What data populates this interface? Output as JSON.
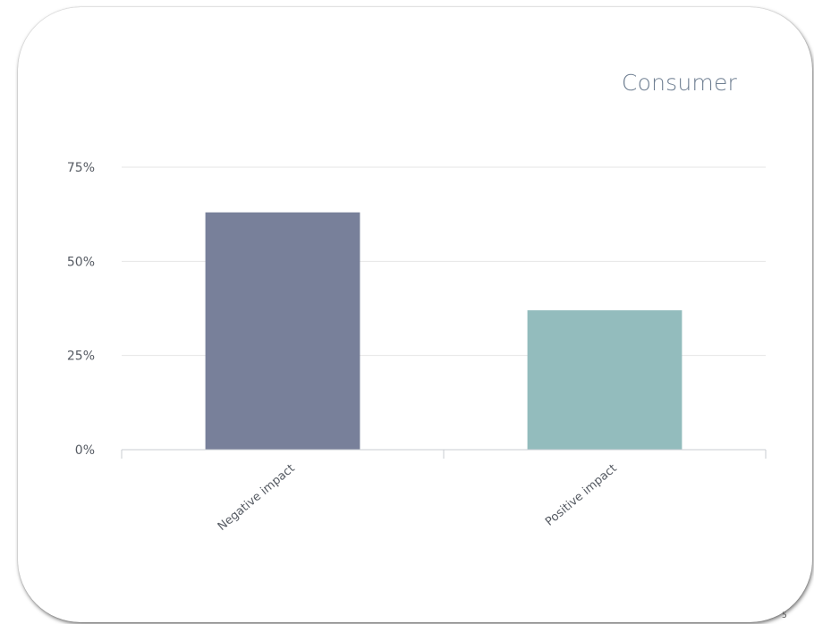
{
  "slide": {
    "page_number": "5"
  },
  "colors": {
    "title": "#6f7f92",
    "gridline": "#e6e6e6",
    "axis": "#c8ccd2"
  },
  "chart_data": {
    "type": "bar",
    "title": "Consumer",
    "categories": [
      "Negative impact",
      "Positive impact"
    ],
    "values": [
      63,
      37
    ],
    "colors": [
      "#78809a",
      "#93bcbd"
    ],
    "ylim": [
      0,
      75
    ],
    "yticks": [
      0,
      25,
      50,
      75
    ],
    "ytick_labels": [
      "0%",
      "25%",
      "50%",
      "75%"
    ],
    "y_unit": "%",
    "grid": true,
    "xlabel": "",
    "ylabel": ""
  }
}
